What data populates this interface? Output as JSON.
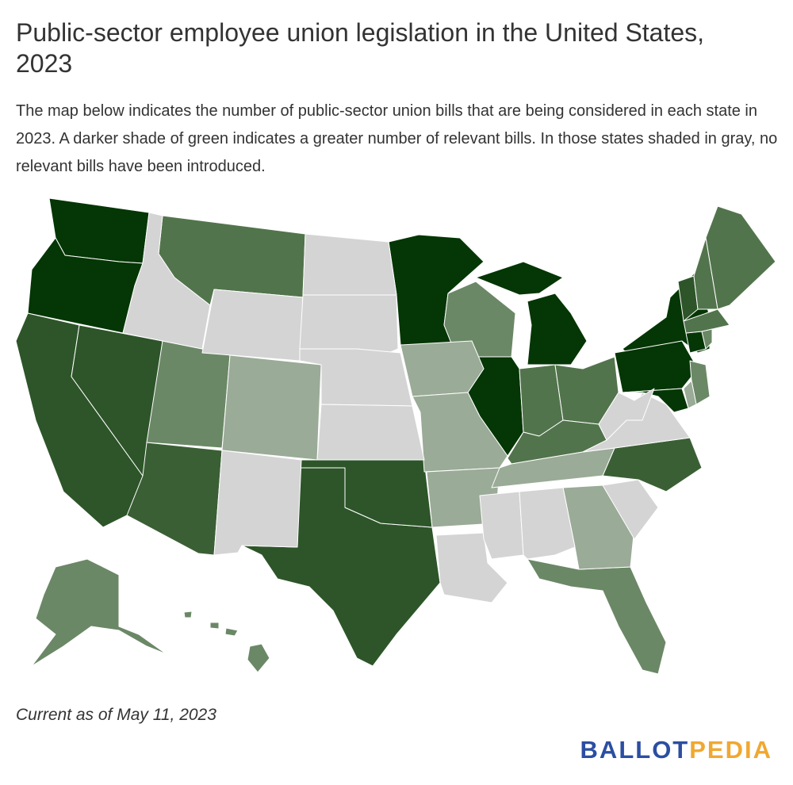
{
  "title": "Public-sector employee union legislation in the United States, 2023",
  "description": "The map below indicates the number of public-sector union bills that are being considered in each state in 2023. A darker shade of green indicates a greater number of relevant bills. In those states shaded in gray, no relevant bills have been introduced.",
  "note": "Current as of May 11, 2023",
  "logo": {
    "part1": "BALLOT",
    "part2": "PEDIA"
  }
}
